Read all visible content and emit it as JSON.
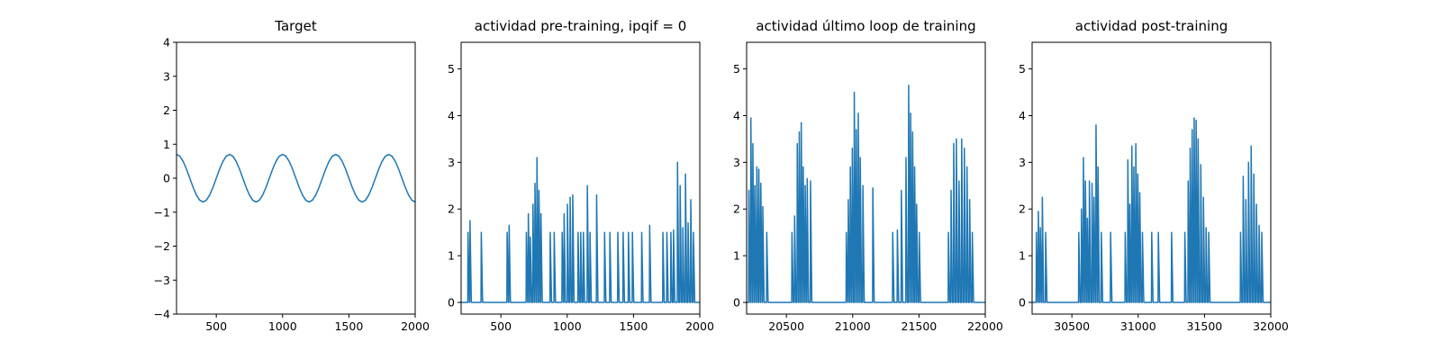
{
  "chart_data": [
    {
      "type": "line",
      "title": "Target",
      "color": "#1f77b4",
      "xlim": [
        200,
        2000
      ],
      "ylim": [
        -4,
        4
      ],
      "xticks": [
        500,
        1000,
        1500,
        2000
      ],
      "yticks": [
        {
          "value": -4,
          "label": "−4"
        },
        {
          "value": -3,
          "label": "−3"
        },
        {
          "value": -2,
          "label": "−2"
        },
        {
          "value": -1,
          "label": "−1"
        },
        0,
        1,
        2,
        3,
        4
      ],
      "x": [
        200,
        225,
        250,
        275,
        300,
        325,
        350,
        375,
        400,
        425,
        450,
        475,
        500,
        525,
        550,
        575,
        600,
        625,
        650,
        675,
        700,
        725,
        750,
        775,
        800,
        825,
        850,
        875,
        900,
        925,
        950,
        975,
        1000,
        1025,
        1050,
        1075,
        1100,
        1125,
        1150,
        1175,
        1200,
        1225,
        1250,
        1275,
        1300,
        1325,
        1350,
        1375,
        1400,
        1425,
        1450,
        1475,
        1500,
        1525,
        1550,
        1575,
        1600,
        1625,
        1650,
        1675,
        1700,
        1725,
        1750,
        1775,
        1800,
        1825,
        1850,
        1875,
        1900,
        1925,
        1950,
        1975,
        2000
      ],
      "values": [
        0.7,
        0.647,
        0.495,
        0.268,
        0,
        -0.268,
        -0.495,
        -0.647,
        -0.7,
        -0.647,
        -0.495,
        -0.268,
        0,
        0.268,
        0.495,
        0.647,
        0.7,
        0.647,
        0.495,
        0.268,
        0,
        -0.268,
        -0.495,
        -0.647,
        -0.7,
        -0.647,
        -0.495,
        -0.268,
        0,
        0.268,
        0.495,
        0.647,
        0.7,
        0.647,
        0.495,
        0.268,
        0,
        -0.268,
        -0.495,
        -0.647,
        -0.7,
        -0.647,
        -0.495,
        -0.268,
        0,
        0.268,
        0.495,
        0.647,
        0.7,
        0.647,
        0.495,
        0.268,
        0,
        -0.268,
        -0.495,
        -0.647,
        -0.7,
        -0.647,
        -0.495,
        -0.268,
        0,
        0.268,
        0.495,
        0.647,
        0.7,
        0.647,
        0.495,
        0.268,
        0,
        -0.268,
        -0.495,
        -0.647,
        -0.7
      ]
    },
    {
      "type": "line",
      "title": "actividad pre-training, ipqif = 0",
      "color": "#1f77b4",
      "xlim": [
        200,
        2000
      ],
      "ylim": [
        -0.25,
        5.57
      ],
      "xticks": [
        500,
        1000,
        1500,
        2000
      ],
      "yticks": [
        0,
        1,
        2,
        3,
        4,
        5
      ],
      "x": [
        200,
        250,
        252,
        262,
        265,
        267,
        277,
        350,
        352,
        362,
        545,
        547,
        557,
        560,
        562,
        572,
        690,
        692,
        702,
        705,
        707,
        717,
        720,
        722,
        732,
        740,
        742,
        752,
        755,
        757,
        767,
        770,
        772,
        782,
        785,
        787,
        797,
        800,
        802,
        812,
        870,
        872,
        882,
        900,
        902,
        912,
        960,
        962,
        972,
        975,
        977,
        987,
        1000,
        1002,
        1012,
        1020,
        1022,
        1032,
        1040,
        1042,
        1052,
        1080,
        1082,
        1092,
        1100,
        1102,
        1112,
        1120,
        1122,
        1132,
        1150,
        1152,
        1162,
        1170,
        1172,
        1182,
        1220,
        1222,
        1232,
        1280,
        1282,
        1292,
        1320,
        1322,
        1332,
        1380,
        1382,
        1392,
        1420,
        1422,
        1432,
        1460,
        1462,
        1472,
        1490,
        1492,
        1502,
        1560,
        1562,
        1572,
        1620,
        1622,
        1632,
        1720,
        1722,
        1732,
        1750,
        1752,
        1762,
        1780,
        1782,
        1792,
        1800,
        1802,
        1812,
        1830,
        1832,
        1842,
        1850,
        1852,
        1862,
        1870,
        1872,
        1882,
        1890,
        1892,
        1902,
        1910,
        1912,
        1922,
        1930,
        1932,
        1942,
        1950,
        1952,
        1962,
        2000
      ],
      "values": [
        0,
        0,
        1.5,
        0,
        0,
        1.75,
        0,
        0,
        1.5,
        0,
        0,
        1.5,
        0,
        0,
        1.65,
        0,
        0,
        1.5,
        0,
        0,
        1.9,
        0,
        0,
        1.4,
        0,
        0,
        2.1,
        0,
        0,
        2.55,
        0,
        0,
        3.1,
        0,
        0,
        2.4,
        0,
        0,
        1.9,
        0,
        0,
        1.5,
        0,
        0,
        1.5,
        0,
        0,
        1.5,
        0,
        0,
        1.9,
        0,
        0,
        2.1,
        0,
        0,
        2.25,
        0,
        0,
        2.3,
        0,
        0,
        1.5,
        0,
        0,
        1.5,
        0,
        0,
        1.5,
        0,
        0,
        2.5,
        0,
        0,
        1.5,
        0,
        0,
        2.3,
        0,
        0,
        1.5,
        0,
        0,
        1.5,
        0,
        0,
        1.5,
        0,
        0,
        1.5,
        0,
        0,
        1.5,
        0,
        0,
        1.5,
        0,
        0,
        1.5,
        0,
        0,
        1.65,
        0,
        0,
        1.5,
        0,
        0,
        1.5,
        0,
        0,
        1.5,
        0,
        0,
        1.55,
        0,
        0,
        3,
        0,
        0,
        2.5,
        0,
        0,
        1.6,
        0,
        0,
        2.75,
        0,
        0,
        1.7,
        0,
        0,
        2.2,
        0,
        0,
        1.5,
        0,
        0
      ]
    },
    {
      "type": "line",
      "title": "actividad último loop de training",
      "color": "#1f77b4",
      "xlim": [
        20200,
        22000
      ],
      "ylim": [
        -0.25,
        5.57
      ],
      "xticks": [
        20500,
        21000,
        21500,
        22000
      ],
      "yticks": [
        0,
        1,
        2,
        3,
        4,
        5
      ],
      "x": [
        20200,
        20215,
        20217,
        20227,
        20230,
        20232,
        20242,
        20245,
        20247,
        20257,
        20260,
        20262,
        20272,
        20275,
        20277,
        20287,
        20290,
        20292,
        20302,
        20305,
        20307,
        20317,
        20320,
        20322,
        20332,
        20350,
        20352,
        20362,
        20540,
        20542,
        20552,
        20560,
        20562,
        20572,
        20580,
        20582,
        20592,
        20595,
        20597,
        20607,
        20610,
        20612,
        20622,
        20625,
        20627,
        20637,
        20640,
        20642,
        20652,
        20655,
        20657,
        20667,
        20680,
        20682,
        20692,
        20950,
        20952,
        20962,
        20965,
        20967,
        20977,
        20980,
        20982,
        20992,
        20995,
        20997,
        21007,
        21010,
        21012,
        21022,
        21025,
        21027,
        21037,
        21040,
        21042,
        21052,
        21055,
        21057,
        21067,
        21075,
        21077,
        21087,
        21150,
        21152,
        21162,
        21300,
        21302,
        21312,
        21335,
        21337,
        21347,
        21365,
        21367,
        21377,
        21400,
        21402,
        21412,
        21420,
        21422,
        21432,
        21435,
        21437,
        21447,
        21450,
        21452,
        21462,
        21465,
        21467,
        21477,
        21480,
        21482,
        21492,
        21500,
        21502,
        21512,
        21720,
        21722,
        21732,
        21740,
        21742,
        21752,
        21760,
        21762,
        21772,
        21780,
        21782,
        21792,
        21800,
        21802,
        21812,
        21820,
        21822,
        21832,
        21840,
        21842,
        21852,
        21860,
        21862,
        21872,
        21880,
        21882,
        21892,
        21900,
        21902,
        21912,
        22000
      ],
      "values": [
        0,
        0,
        2.4,
        0,
        0,
        3.95,
        0,
        0,
        3.4,
        0,
        0,
        2.5,
        0,
        0,
        2.9,
        0,
        0,
        2.85,
        0,
        0,
        2.55,
        0,
        0,
        2.05,
        0,
        0,
        1.5,
        0,
        0,
        1.5,
        0,
        0,
        1.85,
        0,
        0,
        3.4,
        0,
        0,
        3.65,
        0,
        0,
        3.85,
        0,
        0,
        2.9,
        0,
        0,
        2.5,
        0,
        0,
        2.65,
        0,
        0,
        2.6,
        0,
        0,
        1.5,
        0,
        0,
        2.2,
        0,
        0,
        2.9,
        0,
        0,
        3.3,
        0,
        0,
        4.5,
        0,
        0,
        3.7,
        0,
        0,
        4.05,
        0,
        0,
        3.1,
        0,
        0,
        2.5,
        0,
        0,
        2.45,
        0,
        0,
        1.5,
        0,
        0,
        1.55,
        0,
        0,
        2.4,
        0,
        0,
        3.1,
        0,
        0,
        4.65,
        0,
        0,
        4.05,
        0,
        0,
        3.65,
        0,
        0,
        2.9,
        0,
        0,
        2.1,
        0,
        0,
        1.5,
        0,
        0,
        1.5,
        0,
        0,
        2.4,
        0,
        0,
        3.4,
        0,
        0,
        3.5,
        0,
        0,
        2.6,
        0,
        0,
        3.5,
        0,
        0,
        3.3,
        0,
        0,
        2.9,
        0,
        0,
        2.2,
        0,
        0,
        1.5,
        0,
        0
      ]
    },
    {
      "type": "line",
      "title": "actividad post-training",
      "color": "#1f77b4",
      "xlim": [
        30200,
        32000
      ],
      "ylim": [
        -0.25,
        5.57
      ],
      "xticks": [
        30500,
        31000,
        31500,
        32000
      ],
      "yticks": [
        0,
        1,
        2,
        3,
        4,
        5
      ],
      "x": [
        30200,
        30230,
        30232,
        30242,
        30245,
        30247,
        30257,
        30260,
        30262,
        30272,
        30275,
        30277,
        30287,
        30300,
        30302,
        30312,
        30550,
        30552,
        30562,
        30570,
        30572,
        30582,
        30585,
        30587,
        30597,
        30600,
        30602,
        30612,
        30615,
        30617,
        30627,
        30630,
        30632,
        30642,
        30650,
        30652,
        30662,
        30665,
        30667,
        30677,
        30680,
        30682,
        30692,
        30695,
        30697,
        30707,
        30720,
        30722,
        30732,
        30790,
        30792,
        30802,
        30900,
        30902,
        30912,
        30920,
        30922,
        30932,
        30935,
        30937,
        30947,
        30950,
        30952,
        30962,
        30965,
        30967,
        30977,
        30980,
        30982,
        30992,
        30995,
        30997,
        31007,
        31010,
        31012,
        31022,
        31030,
        31032,
        31042,
        31100,
        31102,
        31112,
        31150,
        31152,
        31162,
        31250,
        31252,
        31262,
        31350,
        31352,
        31362,
        31375,
        31377,
        31387,
        31390,
        31392,
        31402,
        31405,
        31407,
        31417,
        31420,
        31422,
        31432,
        31435,
        31437,
        31447,
        31450,
        31452,
        31462,
        31470,
        31472,
        31482,
        31490,
        31492,
        31502,
        31510,
        31512,
        31522,
        31530,
        31532,
        31542,
        31770,
        31772,
        31782,
        31790,
        31792,
        31802,
        31810,
        31812,
        31822,
        31830,
        31832,
        31842,
        31850,
        31852,
        31862,
        31870,
        31872,
        31882,
        31890,
        31892,
        31902,
        31910,
        31912,
        31922,
        31930,
        31932,
        31942,
        32000
      ],
      "values": [
        0,
        0,
        1.5,
        0,
        0,
        1.95,
        0,
        0,
        1.6,
        0,
        0,
        2.25,
        0,
        0,
        1.5,
        0,
        0,
        1.5,
        0,
        0,
        2,
        0,
        0,
        3.1,
        0,
        0,
        2.6,
        0,
        0,
        1.8,
        0,
        0,
        2.6,
        0,
        0,
        2.55,
        0,
        0,
        2.25,
        0,
        0,
        3.8,
        0,
        0,
        2.9,
        0,
        0,
        1.5,
        0,
        0,
        1.5,
        0,
        0,
        1.5,
        0,
        0,
        3.05,
        0,
        0,
        2.1,
        0,
        0,
        3.35,
        0,
        0,
        2.9,
        0,
        0,
        3.4,
        0,
        0,
        2.75,
        0,
        0,
        2.35,
        0,
        0,
        1.5,
        0,
        0,
        1.5,
        0,
        0,
        1.5,
        0,
        0,
        1.5,
        0,
        0,
        1.5,
        0,
        0,
        2.6,
        0,
        0,
        3.3,
        0,
        0,
        3.7,
        0,
        0,
        3.95,
        0,
        0,
        3.9,
        0,
        0,
        3.5,
        0,
        0,
        2.95,
        0,
        0,
        2.25,
        0,
        0,
        1.6,
        0,
        0,
        1.5,
        0,
        0,
        1.5,
        0,
        0,
        2.7,
        0,
        0,
        2.2,
        0,
        0,
        3,
        0,
        0,
        3.35,
        0,
        0,
        2.75,
        0,
        0,
        2.1,
        0,
        0,
        1.65,
        0,
        0,
        1.5,
        0,
        0
      ]
    }
  ]
}
